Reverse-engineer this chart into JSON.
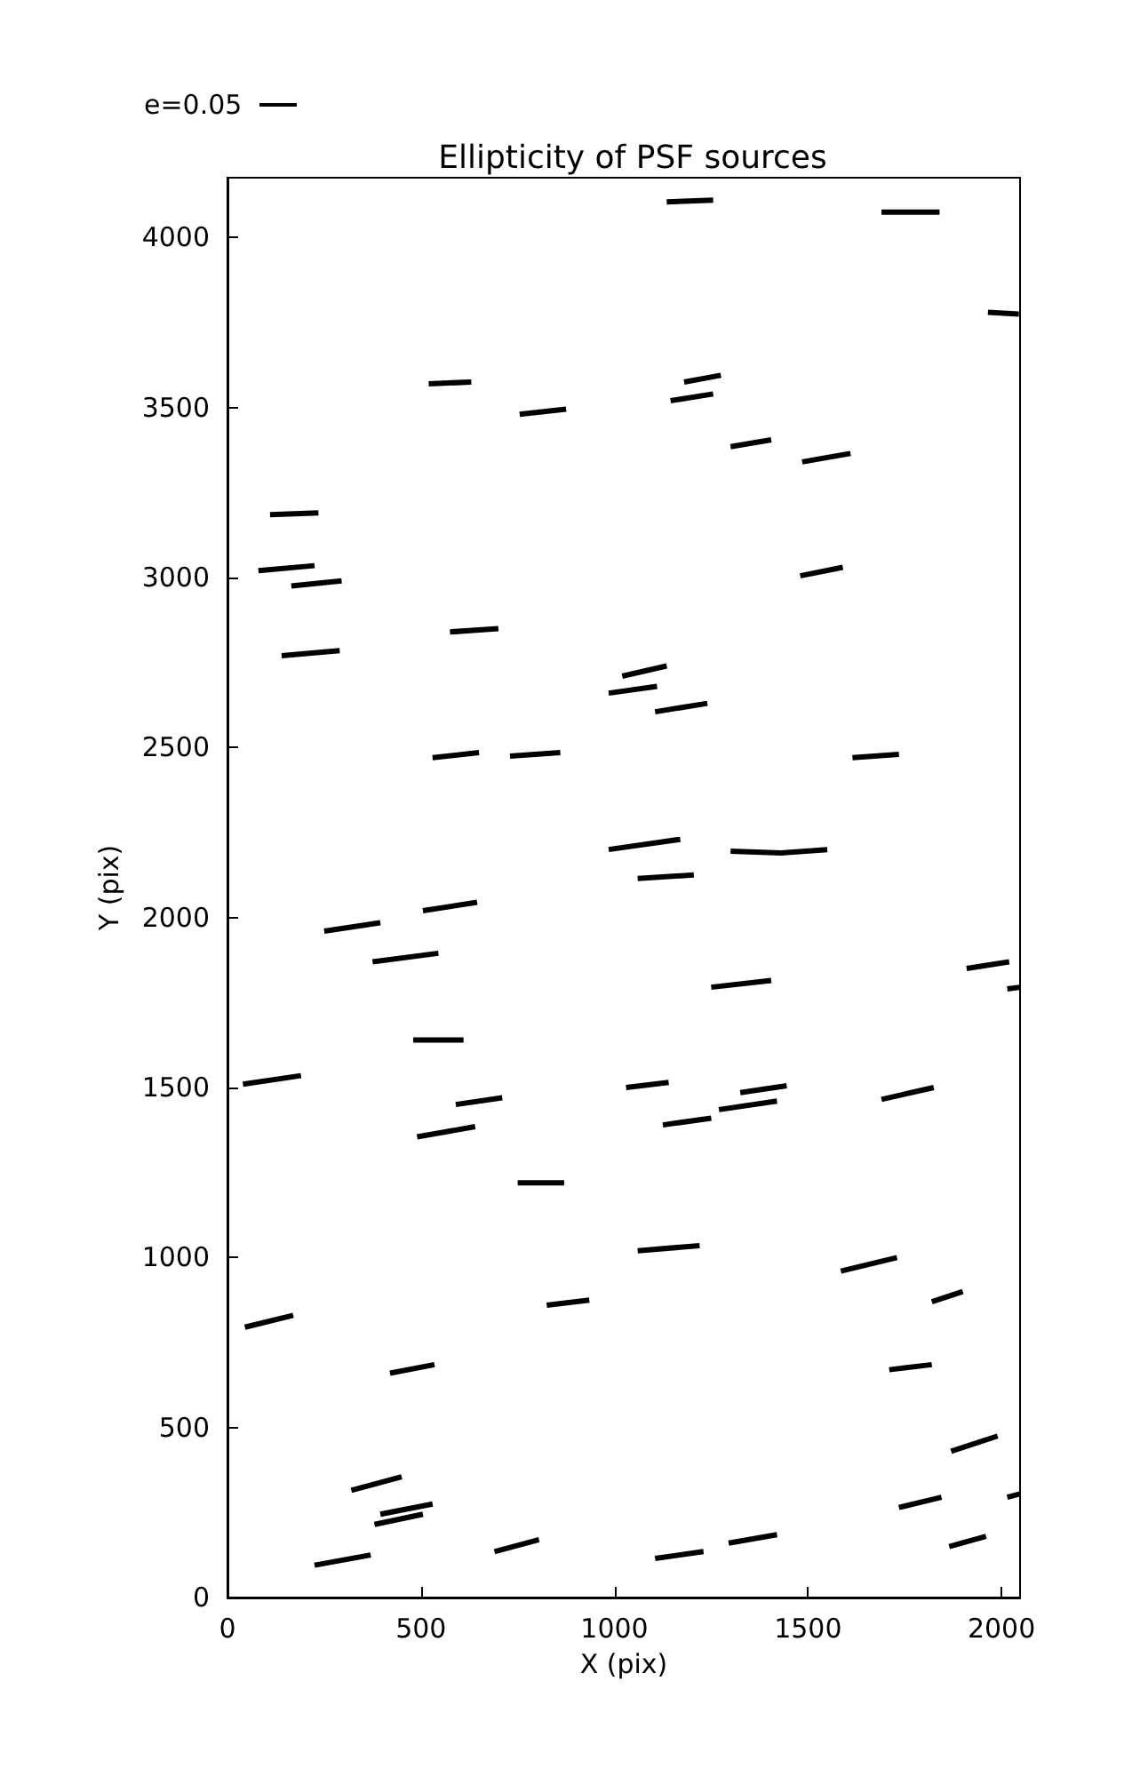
{
  "chart_data": {
    "type": "line",
    "title": "Ellipticity of PSF sources",
    "xlabel": "X (pix)",
    "ylabel": "Y (pix)",
    "annotations": [
      "e=0.05"
    ],
    "xlim": [
      0,
      2048
    ],
    "ylim": [
      0,
      4176
    ],
    "xticks": [
      0,
      500,
      1000,
      1500,
      2000
    ],
    "yticks": [
      0,
      500,
      1000,
      1500,
      2000,
      2500,
      3000,
      3500,
      4000
    ],
    "grid": false,
    "marker": "none",
    "line_style": "solid",
    "series": [
      {
        "color": "#000000",
        "x": [
          1135,
          1255
        ],
        "values": [
          4105,
          4110
        ]
      },
      {
        "color": "#000000",
        "x": [
          1690,
          1840
        ],
        "values": [
          4075,
          4075
        ]
      },
      {
        "color": "#000000",
        "x": [
          1965,
          2045
        ],
        "values": [
          3780,
          3775
        ]
      },
      {
        "color": "#000000",
        "x": [
          520,
          630
        ],
        "values": [
          3570,
          3575
        ]
      },
      {
        "color": "#000000",
        "x": [
          755,
          875
        ],
        "values": [
          3480,
          3495
        ]
      },
      {
        "color": "#000000",
        "x": [
          1180,
          1275
        ],
        "values": [
          3575,
          3595
        ]
      },
      {
        "color": "#000000",
        "x": [
          1145,
          1255
        ],
        "values": [
          3520,
          3540
        ]
      },
      {
        "color": "#000000",
        "x": [
          1300,
          1405
        ],
        "values": [
          3385,
          3405
        ]
      },
      {
        "color": "#000000",
        "x": [
          1485,
          1610
        ],
        "values": [
          3340,
          3365
        ]
      },
      {
        "color": "#000000",
        "x": [
          110,
          235
        ],
        "values": [
          3185,
          3190
        ]
      },
      {
        "color": "#000000",
        "x": [
          80,
          225
        ],
        "values": [
          3020,
          3035
        ]
      },
      {
        "color": "#000000",
        "x": [
          165,
          295
        ],
        "values": [
          2975,
          2990
        ]
      },
      {
        "color": "#000000",
        "x": [
          1480,
          1590
        ],
        "values": [
          3005,
          3030
        ]
      },
      {
        "color": "#000000",
        "x": [
          140,
          290
        ],
        "values": [
          2770,
          2785
        ]
      },
      {
        "color": "#000000",
        "x": [
          575,
          700
        ],
        "values": [
          2840,
          2850
        ]
      },
      {
        "color": "#000000",
        "x": [
          1020,
          1135
        ],
        "values": [
          2710,
          2740
        ]
      },
      {
        "color": "#000000",
        "x": [
          985,
          1110
        ],
        "values": [
          2660,
          2680
        ]
      },
      {
        "color": "#000000",
        "x": [
          1105,
          1240
        ],
        "values": [
          2605,
          2630
        ]
      },
      {
        "color": "#000000",
        "x": [
          530,
          650
        ],
        "values": [
          2470,
          2485
        ]
      },
      {
        "color": "#000000",
        "x": [
          730,
          860
        ],
        "values": [
          2475,
          2485
        ]
      },
      {
        "color": "#000000",
        "x": [
          1615,
          1735
        ],
        "values": [
          2470,
          2480
        ]
      },
      {
        "color": "#000000",
        "x": [
          985,
          1170
        ],
        "values": [
          2200,
          2230
        ]
      },
      {
        "color": "#000000",
        "x": [
          1300,
          1430,
          1550
        ],
        "values": [
          2195,
          2190,
          2200
        ]
      },
      {
        "color": "#000000",
        "x": [
          1060,
          1205
        ],
        "values": [
          2115,
          2125
        ]
      },
      {
        "color": "#000000",
        "x": [
          250,
          395
        ],
        "values": [
          1960,
          1985
        ]
      },
      {
        "color": "#000000",
        "x": [
          375,
          545
        ],
        "values": [
          1870,
          1895
        ]
      },
      {
        "color": "#000000",
        "x": [
          505,
          645
        ],
        "values": [
          2020,
          2045
        ]
      },
      {
        "color": "#000000",
        "x": [
          1250,
          1405
        ],
        "values": [
          1795,
          1815
        ]
      },
      {
        "color": "#000000",
        "x": [
          1910,
          2020
        ],
        "values": [
          1850,
          1870
        ]
      },
      {
        "color": "#000000",
        "x": [
          2015,
          2048
        ],
        "values": [
          1790,
          1795
        ]
      },
      {
        "color": "#000000",
        "x": [
          480,
          610
        ],
        "values": [
          1640,
          1640
        ]
      },
      {
        "color": "#000000",
        "x": [
          40,
          190
        ],
        "values": [
          1510,
          1535
        ]
      },
      {
        "color": "#000000",
        "x": [
          590,
          710
        ],
        "values": [
          1450,
          1470
        ]
      },
      {
        "color": "#000000",
        "x": [
          490,
          640
        ],
        "values": [
          1355,
          1385
        ]
      },
      {
        "color": "#000000",
        "x": [
          1030,
          1140
        ],
        "values": [
          1500,
          1515
        ]
      },
      {
        "color": "#000000",
        "x": [
          1125,
          1250
        ],
        "values": [
          1390,
          1410
        ]
      },
      {
        "color": "#000000",
        "x": [
          1325,
          1445
        ],
        "values": [
          1485,
          1505
        ]
      },
      {
        "color": "#000000",
        "x": [
          1270,
          1420
        ],
        "values": [
          1435,
          1460
        ]
      },
      {
        "color": "#000000",
        "x": [
          1690,
          1825
        ],
        "values": [
          1465,
          1500
        ]
      },
      {
        "color": "#000000",
        "x": [
          750,
          870
        ],
        "values": [
          1220,
          1220
        ]
      },
      {
        "color": "#000000",
        "x": [
          1060,
          1220
        ],
        "values": [
          1020,
          1035
        ]
      },
      {
        "color": "#000000",
        "x": [
          1585,
          1730
        ],
        "values": [
          960,
          1000
        ]
      },
      {
        "color": "#000000",
        "x": [
          825,
          935
        ],
        "values": [
          860,
          875
        ]
      },
      {
        "color": "#000000",
        "x": [
          1710,
          1820
        ],
        "values": [
          670,
          685
        ]
      },
      {
        "color": "#000000",
        "x": [
          1820,
          1900
        ],
        "values": [
          870,
          900
        ]
      },
      {
        "color": "#000000",
        "x": [
          45,
          170
        ],
        "values": [
          795,
          830
        ]
      },
      {
        "color": "#000000",
        "x": [
          420,
          535
        ],
        "values": [
          660,
          685
        ]
      },
      {
        "color": "#000000",
        "x": [
          320,
          450
        ],
        "values": [
          315,
          355
        ]
      },
      {
        "color": "#000000",
        "x": [
          395,
          530
        ],
        "values": [
          245,
          275
        ]
      },
      {
        "color": "#000000",
        "x": [
          380,
          505
        ],
        "values": [
          215,
          245
        ]
      },
      {
        "color": "#000000",
        "x": [
          225,
          370
        ],
        "values": [
          95,
          125
        ]
      },
      {
        "color": "#000000",
        "x": [
          690,
          805
        ],
        "values": [
          135,
          170
        ]
      },
      {
        "color": "#000000",
        "x": [
          1105,
          1230
        ],
        "values": [
          115,
          135
        ]
      },
      {
        "color": "#000000",
        "x": [
          1295,
          1420
        ],
        "values": [
          160,
          185
        ]
      },
      {
        "color": "#000000",
        "x": [
          1870,
          1990
        ],
        "values": [
          430,
          475
        ]
      },
      {
        "color": "#000000",
        "x": [
          1735,
          1845
        ],
        "values": [
          265,
          295
        ]
      },
      {
        "color": "#000000",
        "x": [
          1865,
          1960
        ],
        "values": [
          150,
          180
        ]
      },
      {
        "color": "#000000",
        "x": [
          2015,
          2048
        ],
        "values": [
          295,
          305
        ]
      }
    ]
  }
}
